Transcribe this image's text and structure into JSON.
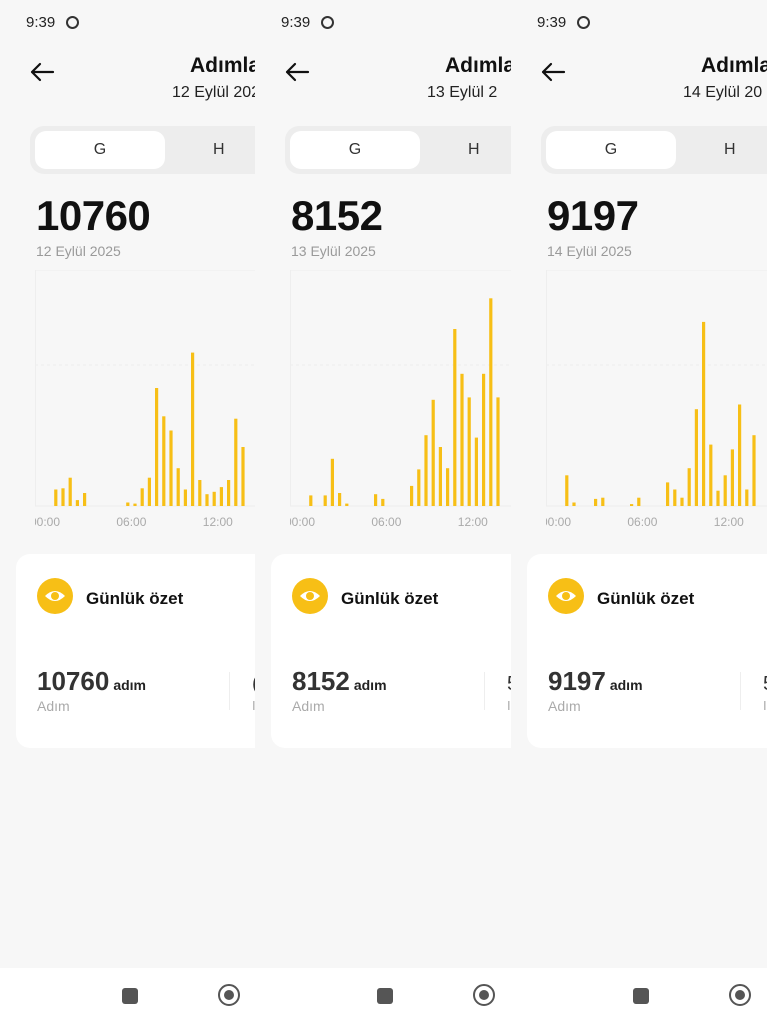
{
  "accent": "#f7bf16",
  "panels": [
    {
      "time": "9:39",
      "title": "Adımla",
      "subtitle": "12 Eylül 202",
      "tab_g": "G",
      "tab_h": "H",
      "total": "10760",
      "date": "12 Eylül 2025",
      "card_title": "Günlük özet",
      "steps_value": "10760",
      "steps_unit": "adım",
      "steps_label": "Adım",
      "cut_glyph": "(",
      "cut_glyph2": "I",
      "icon": "eye-icon"
    },
    {
      "time": "9:39",
      "title": "Adımla",
      "subtitle": "13 Eylül 2",
      "tab_g": "G",
      "tab_h": "H",
      "total": "8152",
      "date": "13 Eylül 2025",
      "card_title": "Günlük özet",
      "steps_value": "8152",
      "steps_unit": "adım",
      "steps_label": "Adım",
      "cut_glyph": "5",
      "cut_glyph2": "I",
      "icon": "eye-icon"
    },
    {
      "time": "9:39",
      "title": "Adımla",
      "subtitle": "14 Eylül 20",
      "tab_g": "G",
      "tab_h": "H",
      "total": "9197",
      "date": "14 Eylül 2025",
      "card_title": "Günlük özet",
      "steps_value": "9197",
      "steps_unit": "adım",
      "steps_label": "Adım",
      "cut_glyph": "5",
      "cut_glyph2": "I",
      "icon": "eye-icon"
    }
  ],
  "chart_data": [
    {
      "type": "bar",
      "x_ticks": [
        "00:00",
        "06:00",
        "12:00"
      ],
      "x_hours": [
        0.75,
        1.25,
        1.75,
        2.25,
        2.75,
        5.75,
        6.25,
        6.75,
        7.25,
        7.75,
        8.25,
        8.75,
        9.25,
        9.75,
        10.25,
        10.75,
        11.25,
        11.75,
        12.25,
        12.75,
        13.25,
        13.75
      ],
      "values": [
        70,
        75,
        120,
        25,
        55,
        15,
        10,
        75,
        120,
        500,
        380,
        320,
        160,
        70,
        650,
        110,
        50,
        60,
        80,
        110,
        370,
        250
      ],
      "ylim": [
        0,
        1000
      ]
    },
    {
      "type": "bar",
      "x_ticks": [
        "00:00",
        "06:00",
        "12:00"
      ],
      "x_hours": [
        0.75,
        1.75,
        2.25,
        2.75,
        3.25,
        5.25,
        5.75,
        7.75,
        8.25,
        8.75,
        9.25,
        9.75,
        10.25,
        10.75,
        11.25,
        11.75,
        12.25,
        12.75,
        13.25,
        13.75
      ],
      "values": [
        45,
        45,
        200,
        55,
        10,
        50,
        30,
        85,
        155,
        300,
        450,
        250,
        160,
        750,
        560,
        460,
        290,
        560,
        880,
        460
      ],
      "ylim": [
        0,
        1000
      ]
    },
    {
      "type": "bar",
      "x_ticks": [
        "00:00",
        "06:00",
        "12:00"
      ],
      "x_hours": [
        0.75,
        1.25,
        2.75,
        3.25,
        5.25,
        5.75,
        7.75,
        8.25,
        8.75,
        9.25,
        9.75,
        10.25,
        10.75,
        11.25,
        11.75,
        12.25,
        12.75,
        13.25,
        13.75
      ],
      "values": [
        130,
        15,
        30,
        35,
        8,
        35,
        100,
        70,
        35,
        160,
        410,
        780,
        260,
        65,
        130,
        240,
        430,
        70,
        300
      ],
      "ylim": [
        0,
        1000
      ]
    }
  ]
}
